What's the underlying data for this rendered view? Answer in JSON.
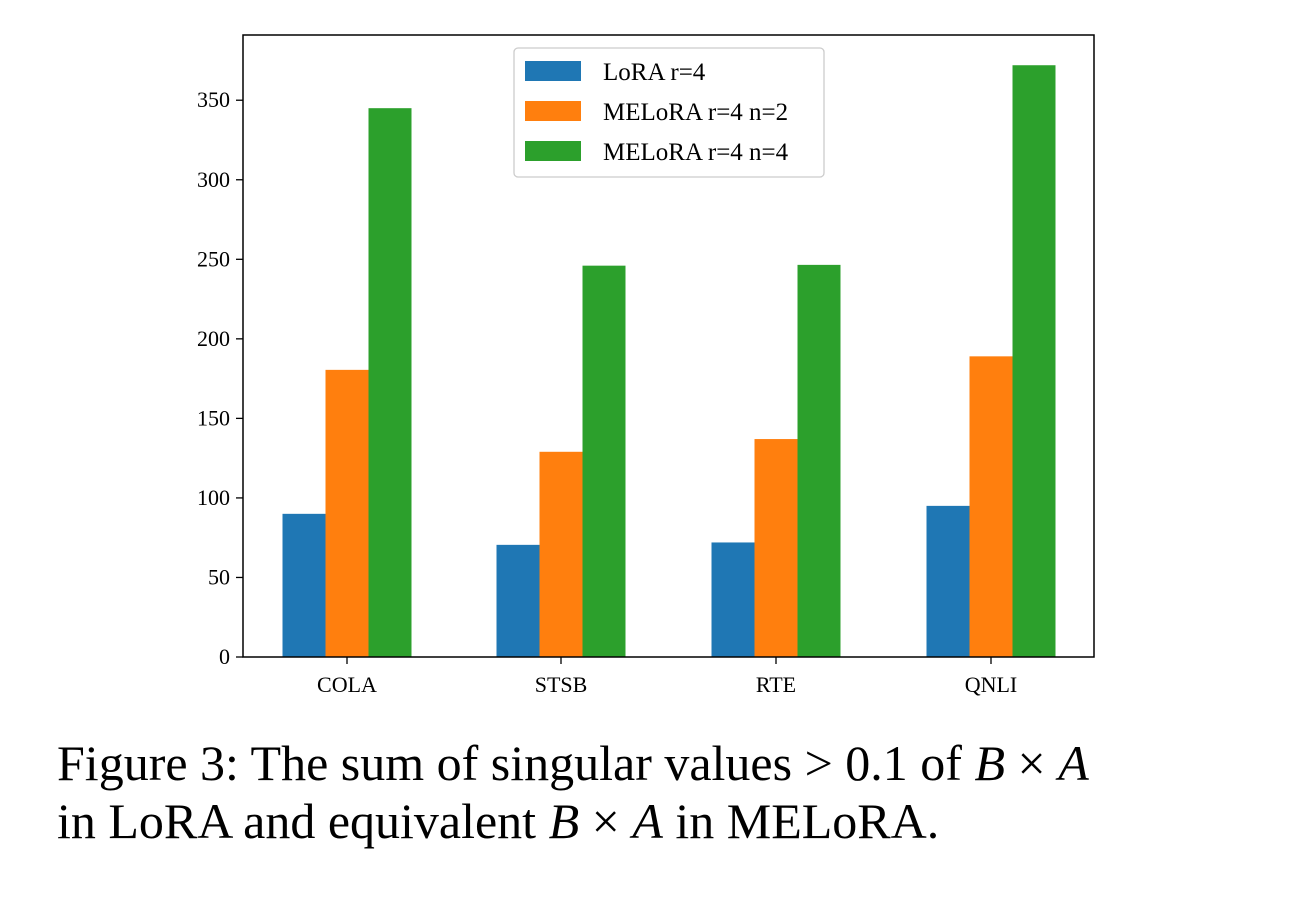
{
  "chart_data": {
    "type": "bar",
    "categories": [
      "COLA",
      "STSB",
      "RTE",
      "QNLI"
    ],
    "series": [
      {
        "name": "LoRA r=4",
        "color": "#1f77b4",
        "values": [
          90,
          70.5,
          72,
          95
        ]
      },
      {
        "name": "MELoRA r=4 n=2",
        "color": "#ff7f0e",
        "values": [
          180.5,
          129,
          137,
          189
        ]
      },
      {
        "name": "MELoRA r=4 n=4",
        "color": "#2ca02c",
        "values": [
          345,
          246,
          246.5,
          372
        ]
      }
    ],
    "yticks": [
      0,
      50,
      100,
      150,
      200,
      250,
      300,
      350
    ],
    "ylim": [
      0,
      391
    ],
    "title": "",
    "xlabel": "",
    "ylabel": "",
    "legend_position": "top-center",
    "grid": false
  },
  "caption": {
    "part1": "Figure 3: The sum of singular values > 0.1 of ",
    "math1_b": "B",
    "math1_op": " × ",
    "math1_a": "A",
    "part2": "in LoRA and equivalent ",
    "math2_b": "B",
    "math2_op": " × ",
    "math2_a": "A",
    "part3": " in MELoRA."
  }
}
